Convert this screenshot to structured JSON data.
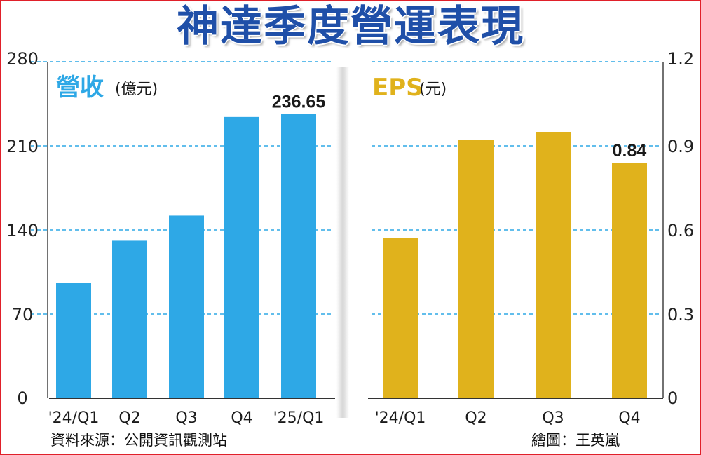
{
  "title": "神達季度營運表現",
  "source": "資料來源：公開資訊觀測站",
  "credit": "繪圖：王英嵐",
  "colors": {
    "revenue": "#2ea8e6",
    "eps": "#e0b21c",
    "title": "#1f4fa8",
    "border": "#e0202a",
    "grid": "#2ea8e6"
  },
  "chart_data": [
    {
      "type": "bar",
      "title": "營收",
      "unit": "(億元)",
      "categories": [
        "'24/Q1",
        "Q2",
        "Q3",
        "Q4",
        "'25/Q1"
      ],
      "values": [
        96,
        131,
        152,
        234,
        236.65
      ],
      "value_labels": [
        "",
        "",
        "",
        "",
        "236.65"
      ],
      "ylim": [
        0,
        280
      ],
      "yticks": [
        "0",
        "70",
        "140",
        "210",
        "280"
      ],
      "axis_side": "left",
      "grid": true
    },
    {
      "type": "bar",
      "title": "EPS",
      "unit": "(元)",
      "categories": [
        "'24/Q1",
        "Q2",
        "Q3",
        "Q4"
      ],
      "values": [
        0.57,
        0.92,
        0.95,
        0.84
      ],
      "value_labels": [
        "",
        "",
        "",
        "0.84"
      ],
      "ylim": [
        0,
        1.2
      ],
      "yticks": [
        "0",
        "0.3",
        "0.6",
        "0.9",
        "1.2"
      ],
      "axis_side": "right",
      "grid": true
    }
  ]
}
